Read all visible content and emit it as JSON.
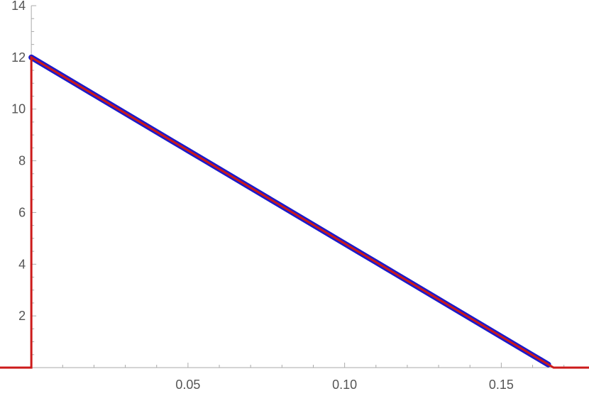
{
  "chart_data": {
    "type": "line",
    "title": "",
    "xlabel": "",
    "ylabel": "",
    "xlim": [
      -0.01,
      0.178
    ],
    "ylim": [
      0,
      14
    ],
    "grid": false,
    "legend": "none",
    "x_ticks": [
      {
        "value": 0.05,
        "label": "0.05"
      },
      {
        "value": 0.1,
        "label": "0.10"
      },
      {
        "value": 0.15,
        "label": "0.15"
      }
    ],
    "y_ticks": [
      {
        "value": 2,
        "label": "2"
      },
      {
        "value": 4,
        "label": "4"
      },
      {
        "value": 6,
        "label": "6"
      },
      {
        "value": 8,
        "label": "8"
      },
      {
        "value": 10,
        "label": "10"
      },
      {
        "value": 12,
        "label": "12"
      },
      {
        "value": 14,
        "label": "14"
      }
    ],
    "series": [
      {
        "kind": "points",
        "color": "#1a1acc",
        "x": [
          0.0,
          0.005,
          0.01,
          0.015,
          0.02,
          0.025,
          0.03,
          0.035,
          0.04,
          0.045,
          0.05,
          0.055,
          0.06,
          0.065,
          0.07,
          0.075,
          0.08,
          0.085,
          0.09,
          0.095,
          0.1,
          0.105,
          0.11,
          0.115,
          0.12,
          0.125,
          0.13,
          0.135,
          0.14,
          0.145,
          0.15,
          0.155,
          0.16,
          0.165
        ],
        "y": [
          12.0,
          11.64,
          11.28,
          10.92,
          10.56,
          10.2,
          9.84,
          9.48,
          9.12,
          8.76,
          8.4,
          8.04,
          7.68,
          7.32,
          6.96,
          6.6,
          6.24,
          5.88,
          5.52,
          5.16,
          4.8,
          4.44,
          4.08,
          3.72,
          3.36,
          3.0,
          2.64,
          2.28,
          1.92,
          1.56,
          1.2,
          0.84,
          0.48,
          0.12
        ]
      },
      {
        "kind": "line",
        "color": "#cc1a1a",
        "x": [
          -0.01,
          0.0,
          0.0,
          0.1667,
          0.178
        ],
        "y": [
          0,
          0,
          12.0,
          0,
          0
        ]
      }
    ]
  }
}
